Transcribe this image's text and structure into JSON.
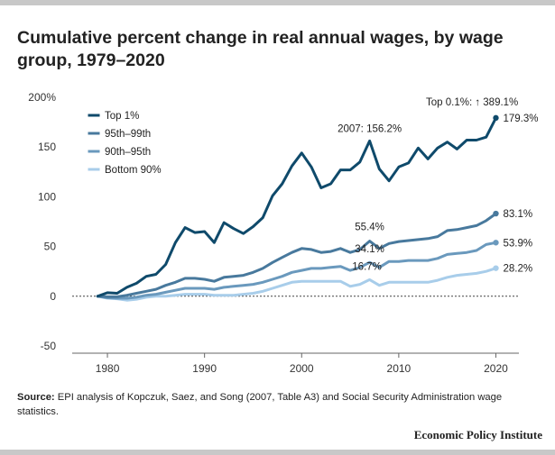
{
  "title": "Cumulative percent change in real annual wages, by wage group, 1979–2020",
  "source": {
    "label": "Source:",
    "text": " EPI analysis of Kopczuk, Saez, and Song (2007, Table A3) and Social Security Administration wage statistics."
  },
  "brand": "Economic Policy Institute",
  "chart_data": {
    "type": "line",
    "x": [
      1979,
      1980,
      1981,
      1982,
      1983,
      1984,
      1985,
      1986,
      1987,
      1988,
      1989,
      1990,
      1991,
      1992,
      1993,
      1994,
      1995,
      1996,
      1997,
      1998,
      1999,
      2000,
      2001,
      2002,
      2003,
      2004,
      2005,
      2006,
      2007,
      2008,
      2009,
      2010,
      2011,
      2012,
      2013,
      2014,
      2015,
      2016,
      2017,
      2018,
      2019,
      2020
    ],
    "x_ticks": [
      1980,
      1990,
      2000,
      2010,
      2020
    ],
    "y_ticks": [
      -50,
      0,
      50,
      100,
      150,
      200
    ],
    "y_tick_labels": [
      "-50",
      "0",
      "50",
      "100",
      "150",
      "200%"
    ],
    "xlim": [
      1976,
      2022
    ],
    "ylim": [
      -50,
      200
    ],
    "legend_position": "top-left",
    "series": [
      {
        "name": "Top 1%",
        "color": "#0f4a6b",
        "values": [
          0,
          3.5,
          3,
          9,
          13,
          20,
          22,
          32,
          54,
          69,
          64,
          65,
          54,
          74,
          68,
          63,
          70,
          79,
          101,
          113,
          131,
          144,
          130,
          109,
          113,
          127,
          127,
          135,
          156.2,
          128,
          116,
          130,
          134,
          149,
          138,
          149,
          155,
          148,
          157,
          157,
          160,
          179.3
        ]
      },
      {
        "name": "95th–99th",
        "color": "#48799d",
        "values": [
          0,
          -0.5,
          -0.5,
          1,
          3,
          5,
          7,
          11,
          14,
          18,
          18,
          17,
          15,
          19,
          20,
          21,
          24,
          28,
          34,
          39,
          44,
          48,
          47,
          44,
          45,
          48,
          44,
          47,
          55.4,
          48,
          53,
          55,
          56,
          57,
          58,
          60,
          66,
          67,
          69,
          71,
          76,
          83.1
        ]
      },
      {
        "name": "90th–95th",
        "color": "#6a99bd",
        "values": [
          0,
          -1.5,
          -2,
          -2,
          -1,
          1,
          2,
          4,
          6,
          8,
          8,
          8,
          7,
          9,
          10,
          11,
          12,
          14,
          17,
          20,
          24,
          26,
          28,
          28,
          29,
          30,
          26,
          29,
          34.1,
          29,
          35,
          35,
          36,
          36,
          36,
          38,
          42,
          43,
          44,
          46,
          52,
          53.9
        ]
      },
      {
        "name": "Bottom 90%",
        "color": "#a8cdea",
        "values": [
          0,
          -2,
          -2.5,
          -4,
          -3,
          -1,
          0,
          0,
          1,
          2,
          2,
          2,
          1,
          1,
          1,
          2,
          3,
          5,
          8,
          11,
          14,
          15,
          15,
          15,
          15,
          15,
          10,
          12,
          16.7,
          11,
          14,
          14,
          14,
          14,
          14,
          16,
          19,
          21,
          22,
          23,
          25,
          28.2
        ]
      }
    ],
    "annotations": {
      "peak_2007": "2007: 156.2%",
      "top01": "Top 0.1%: ↑ 389.1%",
      "end_top1": "179.3%",
      "end_95_99": "83.1%",
      "end_90_95": "53.9%",
      "end_bottom90": "28.2%",
      "mid_95_99": "55.4%",
      "mid_90_95": "34.1%",
      "mid_bottom90": "16.7%"
    }
  }
}
